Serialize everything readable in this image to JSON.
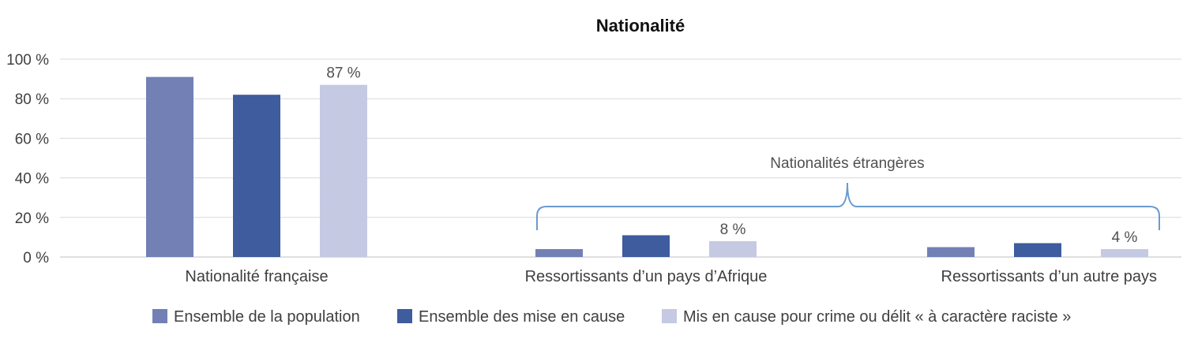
{
  "chart_data": {
    "type": "bar",
    "title": "Nationalité",
    "categories": [
      "Nationalité française",
      "Ressortissants d’un pays d’Afrique",
      "Ressortissants d’un autre pays"
    ],
    "series": [
      {
        "name": "Ensemble de la population",
        "values": [
          91,
          4,
          5
        ],
        "color": "#7380B6"
      },
      {
        "name": "Ensemble des mise en cause",
        "values": [
          82,
          11,
          7
        ],
        "color": "#3E5C9E"
      },
      {
        "name": "Mis en cause pour crime ou délit « à caractère raciste »",
        "values": [
          87,
          8,
          4
        ],
        "color": "#C5C9E2"
      }
    ],
    "data_labels": [
      {
        "series": 2,
        "category": 0,
        "text": "87 %"
      },
      {
        "series": 2,
        "category": 1,
        "text": "8 %"
      },
      {
        "series": 2,
        "category": 2,
        "text": "4 %"
      }
    ],
    "ylim": [
      0,
      100
    ],
    "yticks": [
      0,
      20,
      40,
      60,
      80,
      100
    ],
    "ytick_labels": [
      "0 %",
      "20 %",
      "40 %",
      "60 %",
      "80 %",
      "100 %"
    ],
    "grid": true,
    "legend_position": "bottom-center",
    "annotation": {
      "text": "Nationalités étrangères",
      "spans_categories": [
        1,
        2
      ]
    },
    "xlabel": "",
    "ylabel": ""
  }
}
